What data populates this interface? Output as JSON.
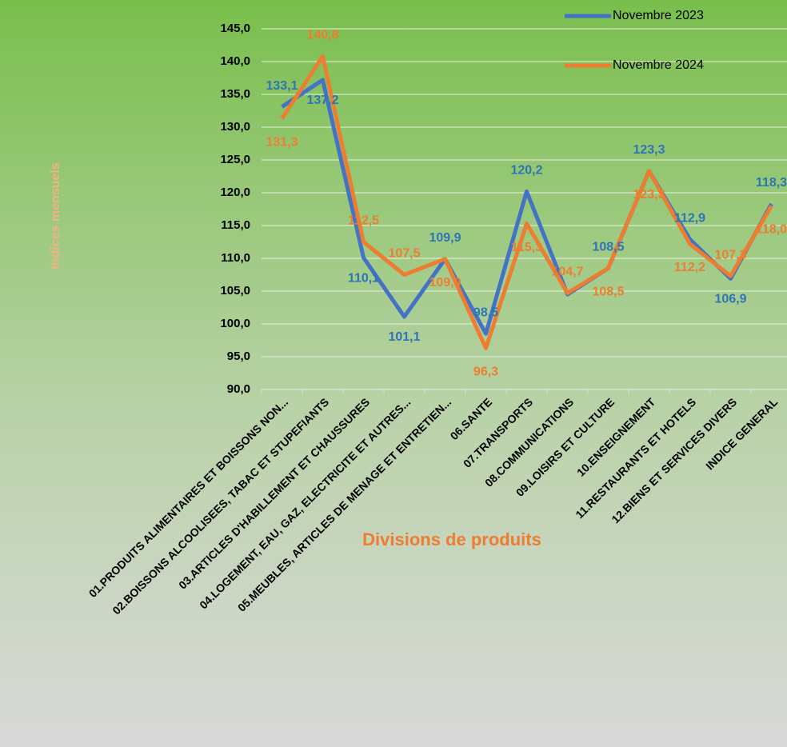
{
  "chart_data": {
    "type": "line",
    "y_axis_label": "Indices mensuels",
    "x_axis_label": "Divisions de produits",
    "categories": [
      "01.PRODUITS ALIMENTAIRES ET BOISSONS NON...",
      "02.BOISSONS ALCOOLISEES, TABAC ET STUPEFIANTS",
      "03.ARTICLES D'HABILLEMENT ET CHAUSSURES",
      "04.LOGEMENT, EAU, GAZ, ELECTRICITE ET AUTRES...",
      "05.MEUBLES, ARTICLES DE MENAGE ET ENTRETIEN...",
      "06.SANTE",
      "07.TRANSPORTS",
      "08.COMMUNICATIONS",
      "09.LOISIRS ET CULTURE",
      "10.ENSEIGNEMENT",
      "11.RESTAURANTS ET HOTELS",
      "12.BIENS ET SERVICES DIVERS",
      "INDICE GENERAL"
    ],
    "series": [
      {
        "name": "Novembre 2023",
        "color": "#4472c4",
        "values": [
          133.1,
          137.2,
          110.1,
          101.1,
          109.9,
          98.5,
          120.2,
          104.5,
          108.5,
          123.3,
          112.9,
          106.9,
          118.3
        ],
        "value_labels": [
          "133,1",
          "137,2",
          "110,1",
          "101,1",
          "109,9",
          "98,5",
          "120,2",
          null,
          "108,5",
          "123,3",
          "112,9",
          "106,9",
          "118,3"
        ]
      },
      {
        "name": "Novembre 2024",
        "color": "#ed7d31",
        "values": [
          131.3,
          140.8,
          112.5,
          107.5,
          109.9,
          96.3,
          115.3,
          104.7,
          108.5,
          123.3,
          112.2,
          107.3,
          118.0
        ],
        "value_labels": [
          "131,3",
          "140,8",
          "112,5",
          "107,5",
          "109,9",
          "96,3",
          "115,3",
          "104,7",
          "108,5",
          "123,3",
          "112,2",
          "107,3",
          "118,0"
        ]
      }
    ],
    "ylim": [
      90,
      145
    ],
    "yticks": [
      {
        "value": 90,
        "label": "90,0"
      },
      {
        "value": 95,
        "label": "95,0"
      },
      {
        "value": 100,
        "label": "100,0"
      },
      {
        "value": 105,
        "label": "105,0"
      },
      {
        "value": 110,
        "label": "110,0"
      },
      {
        "value": 115,
        "label": "115,0"
      },
      {
        "value": 120,
        "label": "120,0"
      },
      {
        "value": 125,
        "label": "125,0"
      },
      {
        "value": 130,
        "label": "130,0"
      },
      {
        "value": 135,
        "label": "135,0"
      },
      {
        "value": 140,
        "label": "140,0"
      },
      {
        "value": 145,
        "label": "145,0"
      }
    ],
    "grid": true,
    "legend": "top-right"
  }
}
